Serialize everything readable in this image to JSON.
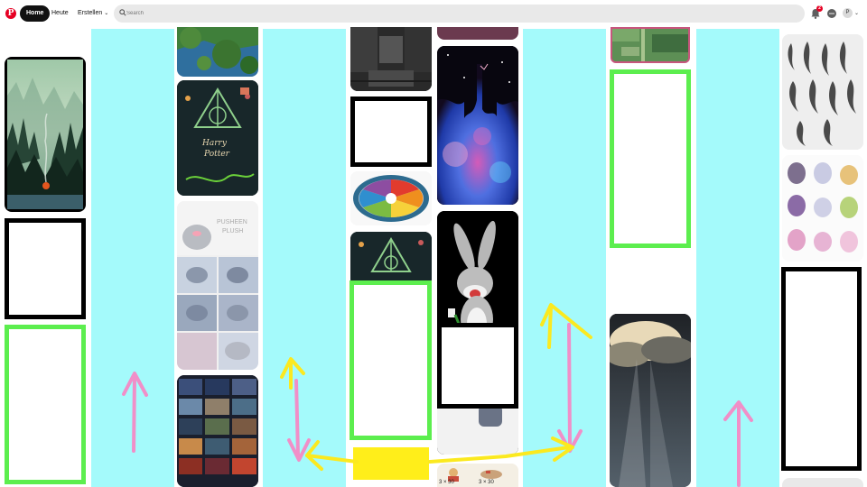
{
  "header": {
    "logo_glyph": "P",
    "tabs": [
      {
        "label": "Home",
        "active": true
      },
      {
        "label": "Heute",
        "active": false
      },
      {
        "label": "Erstellen",
        "active": false
      }
    ],
    "create_chevron": "⌄",
    "search_placeholder": "Search",
    "notification_count": "2",
    "avatar_initial": "P",
    "account_chevron": "⌄"
  },
  "pins": [
    {
      "name": "pixel-forest-fire-pin",
      "column": 1
    },
    {
      "name": "coastal-trees-pin",
      "column": 2
    },
    {
      "name": "harry-potter-poster-pin",
      "column": 2,
      "text": "Harry Potter"
    },
    {
      "name": "pusheen-plush-tutorial-pin",
      "column": 2,
      "text": "PUSHEEN PLUSH"
    },
    {
      "name": "sky-landscapes-grid-pin",
      "column": 2
    },
    {
      "name": "dark-interior-pin",
      "column": 3
    },
    {
      "name": "color-wheel-pin",
      "column": 3
    },
    {
      "name": "harry-potter-small-pin",
      "column": 3
    },
    {
      "name": "galaxy-drip-pin",
      "column": 4
    },
    {
      "name": "bugs-bunny-pin",
      "column": 4
    },
    {
      "name": "plush-craft-pin",
      "column": 4,
      "text": "3 × 30"
    },
    {
      "name": "pixel-map-pin",
      "column": 5
    },
    {
      "name": "sunbeam-clouds-pin",
      "column": 5
    },
    {
      "name": "feather-brushes-pin",
      "column": 6
    },
    {
      "name": "cute-creatures-pin",
      "column": 6
    }
  ],
  "annotations": {
    "colors": {
      "cyan": "#a4fafb",
      "green": "#5cee4e",
      "black": "#000000",
      "yellow": "#ffee1a",
      "pink": "#f08fc8",
      "arrow_yellow": "#fbe91f"
    }
  }
}
